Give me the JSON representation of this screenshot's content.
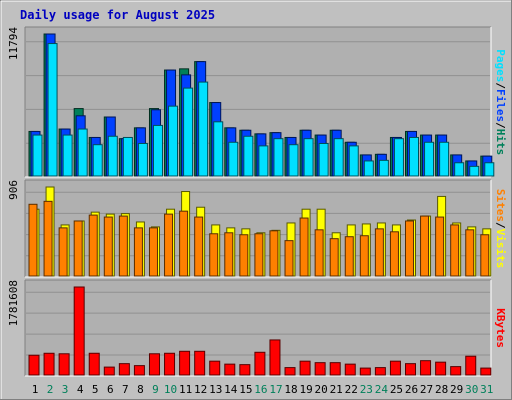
{
  "title": "Daily usage for August 2025",
  "colors": {
    "background": "#c0c0c0",
    "plot_background": "#b0b0b0",
    "title": "#0000c0",
    "hits": "#00805a",
    "files": "#0040ff",
    "pages": "#00e0ff",
    "visits": "#ffff00",
    "sites": "#ff8000",
    "kbytes": "#ff0000",
    "weekday_label": "#000000",
    "weekend_label": "#00805a"
  },
  "chart_data": [
    {
      "type": "bar",
      "name": "hits-files-pages",
      "ylabel_parts": [
        "Pages",
        "/",
        "Files",
        "/",
        "Hits"
      ],
      "max_label": "11794",
      "ylim": [
        0,
        11794
      ],
      "categories": [
        "1",
        "2",
        "3",
        "4",
        "5",
        "6",
        "7",
        "8",
        "9",
        "10",
        "11",
        "12",
        "13",
        "14",
        "15",
        "16",
        "17",
        "18",
        "19",
        "20",
        "21",
        "22",
        "23",
        "24",
        "25",
        "26",
        "27",
        "28",
        "29",
        "30",
        "31"
      ],
      "series": [
        {
          "name": "Hits",
          "values": [
            3700,
            11794,
            3900,
            5600,
            3200,
            4900,
            3100,
            4000,
            5600,
            8800,
            8900,
            9500,
            6100,
            4000,
            3800,
            3500,
            3600,
            3200,
            3800,
            3400,
            3800,
            2800,
            1750,
            1800,
            3200,
            3700,
            3400,
            3400,
            1750,
            1250,
            1650
          ]
        },
        {
          "name": "Files",
          "values": [
            3700,
            11794,
            3900,
            5000,
            3200,
            4900,
            3100,
            4000,
            5500,
            8800,
            8400,
            9500,
            6100,
            4000,
            3800,
            3500,
            3600,
            3200,
            3800,
            3400,
            3800,
            2800,
            1750,
            1800,
            3200,
            3700,
            3400,
            3400,
            1750,
            1250,
            1650
          ]
        },
        {
          "name": "Pages",
          "values": [
            3400,
            11000,
            3400,
            3900,
            2600,
            3300,
            3200,
            2700,
            4200,
            5800,
            7300,
            7800,
            4500,
            2800,
            3300,
            2500,
            3100,
            2600,
            3100,
            2700,
            3100,
            2500,
            1250,
            1300,
            3100,
            3200,
            2800,
            2800,
            1100,
            800,
            1100
          ]
        }
      ]
    },
    {
      "type": "bar",
      "name": "visits-sites",
      "ylabel_parts": [
        "Sites",
        "/",
        "Visits"
      ],
      "max_label": "906",
      "ylim": [
        0,
        906
      ],
      "categories": [
        "1",
        "2",
        "3",
        "4",
        "5",
        "6",
        "7",
        "8",
        "9",
        "10",
        "11",
        "12",
        "13",
        "14",
        "15",
        "16",
        "17",
        "18",
        "19",
        "20",
        "21",
        "22",
        "23",
        "24",
        "25",
        "26",
        "27",
        "28",
        "29",
        "30",
        "31"
      ],
      "series": [
        {
          "name": "Visits",
          "values": [
            680,
            906,
            520,
            560,
            650,
            630,
            635,
            550,
            500,
            680,
            860,
            700,
            520,
            490,
            480,
            440,
            465,
            540,
            680,
            680,
            440,
            520,
            530,
            540,
            520,
            570,
            610,
            810,
            540,
            500,
            480
          ]
        },
        {
          "name": "Sites",
          "values": [
            730,
            760,
            490,
            560,
            620,
            600,
            610,
            490,
            490,
            630,
            660,
            600,
            430,
            440,
            420,
            430,
            460,
            360,
            590,
            470,
            380,
            400,
            410,
            480,
            450,
            560,
            610,
            600,
            520,
            470,
            420
          ]
        }
      ]
    },
    {
      "type": "bar",
      "name": "kbytes",
      "ylabel_parts": [
        "KBytes"
      ],
      "max_label": "1781608",
      "ylim": [
        0,
        1781608
      ],
      "categories": [
        "1",
        "2",
        "3",
        "4",
        "5",
        "6",
        "7",
        "8",
        "9",
        "10",
        "11",
        "12",
        "13",
        "14",
        "15",
        "16",
        "17",
        "18",
        "19",
        "20",
        "21",
        "22",
        "23",
        "24",
        "25",
        "26",
        "27",
        "28",
        "29",
        "30",
        "31"
      ],
      "series": [
        {
          "name": "KBytes",
          "values": [
            400000,
            440000,
            430000,
            1781608,
            440000,
            160000,
            230000,
            190000,
            430000,
            440000,
            480000,
            480000,
            280000,
            220000,
            210000,
            460000,
            710000,
            150000,
            280000,
            250000,
            250000,
            220000,
            140000,
            150000,
            280000,
            230000,
            290000,
            260000,
            170000,
            380000,
            140000
          ]
        }
      ]
    }
  ]
}
